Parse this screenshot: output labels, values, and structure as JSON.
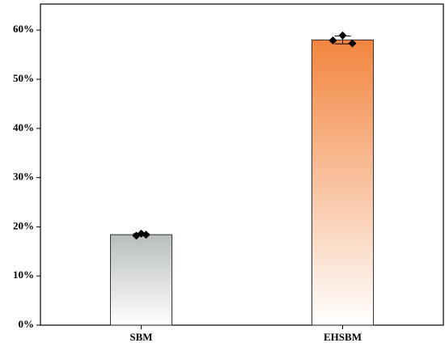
{
  "chart_data": {
    "type": "bar",
    "categories": [
      "SBM",
      "EHSBM"
    ],
    "values": [
      18.4,
      58.0
    ],
    "errors": [
      0.2,
      0.8
    ],
    "points": [
      [
        18.2,
        18.6,
        18.4
      ],
      [
        57.9,
        58.9,
        57.3
      ]
    ],
    "colors": [
      "#b8beb9",
      "#f2853f"
    ],
    "ylim": [
      0,
      65.3
    ],
    "yticks": [
      {
        "value": 0,
        "label": "0%"
      },
      {
        "value": 10,
        "label": "10%"
      },
      {
        "value": 20,
        "label": "20%"
      },
      {
        "value": 30,
        "label": "30%"
      },
      {
        "value": 40,
        "label": "40%"
      },
      {
        "value": 50,
        "label": "50%"
      },
      {
        "value": 60,
        "label": "60%"
      }
    ],
    "grid": false
  }
}
